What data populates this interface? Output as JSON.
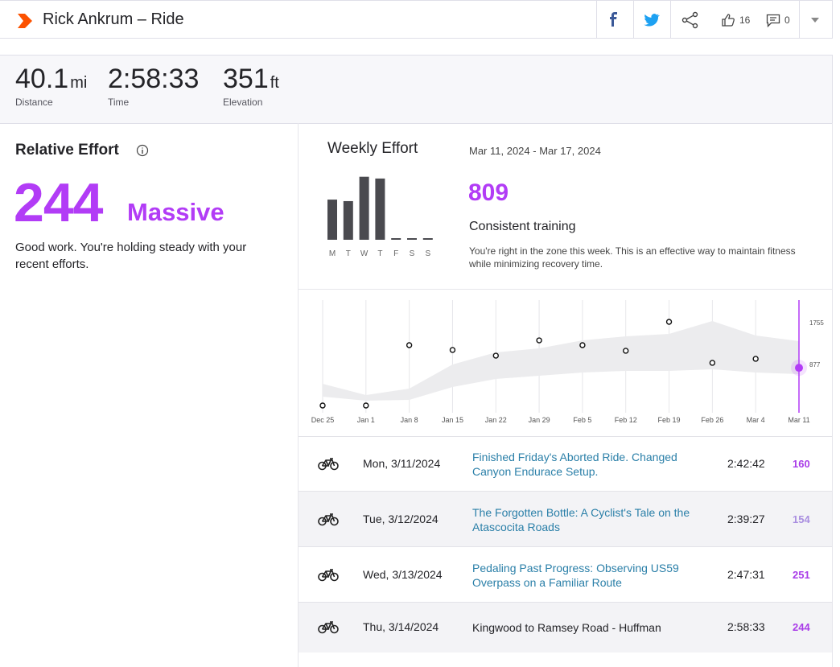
{
  "header": {
    "title": "Rick Ankrum – Ride",
    "kudos": 16,
    "comments": 0
  },
  "stats": [
    {
      "value": 40.1,
      "unit": "mi",
      "label": "Distance"
    },
    {
      "value": "2:58:33",
      "label": "Time"
    },
    {
      "value": 351,
      "unit": "ft",
      "label": "Elevation"
    }
  ],
  "relative_effort": {
    "title": "Relative Effort",
    "score": 244,
    "level": "Massive",
    "message": "Good work. You're holding steady with your recent efforts."
  },
  "weekly_effort": {
    "title": "Weekly Effort",
    "date_range": "Mar 11, 2024 - Mar 17, 2024",
    "score": 809,
    "status": "Consistent training",
    "description": "You're right in the zone this week. This is an effective way to maintain fitness while minimizing recovery time.",
    "day_chart": {
      "type": "bar",
      "categories": [
        "M",
        "T",
        "W",
        "T",
        "F",
        "S",
        "S"
      ],
      "values": [
        160,
        154,
        251,
        244,
        0,
        0,
        0
      ],
      "color": "#4a4a4f",
      "ylim": [
        0,
        250
      ]
    }
  },
  "trend_chart": {
    "type": "line",
    "categories": [
      "Dec 25",
      "Jan 1",
      "Jan 8",
      "Jan 15",
      "Jan 22",
      "Jan 29",
      "Feb 5",
      "Feb 12",
      "Feb 19",
      "Feb 26",
      "Mar 4",
      "Mar 11"
    ],
    "values": [
      17,
      17,
      1284,
      1183,
      1064,
      1385,
      1284,
      1166,
      1774,
      913,
      997,
      809
    ],
    "range_low": [
      203,
      118,
      135,
      406,
      575,
      642,
      710,
      744,
      744,
      777,
      710,
      676
    ],
    "range_high": [
      473,
      237,
      372,
      879,
      1132,
      1217,
      1386,
      1470,
      1521,
      1791,
      1487,
      1369
    ],
    "ylim": [
      0,
      2230
    ],
    "yticks": [
      877,
      1755
    ],
    "color": "#b23cf6"
  },
  "activities": {
    "rows": [
      {
        "date": "Mon, 3/11/2024",
        "title": "Finished Friday's Aborted Ride. Changed Canyon Endurace Setup.",
        "time": "2:42:42",
        "effort": 160,
        "effort_color": "#a93ce8",
        "link": true
      },
      {
        "date": "Tue, 3/12/2024",
        "title": "The Forgotten Bottle: A Cyclist's Tale on the Atascocita Roads",
        "time": "2:39:27",
        "effort": 154,
        "effort_color": "#a98ee0",
        "link": true
      },
      {
        "date": "Wed, 3/13/2024",
        "title": "Pedaling Past Progress: Observing US59 Overpass on a Familiar Route",
        "time": "2:47:31",
        "effort": 251,
        "effort_color": "#a93ce8",
        "link": true
      },
      {
        "date": "Thu, 3/14/2024",
        "title": "Kingwood to Ramsey Road - Huffman",
        "time": "2:58:33",
        "effort": 244,
        "effort_color": "#a93ce8",
        "link": false
      }
    ]
  }
}
